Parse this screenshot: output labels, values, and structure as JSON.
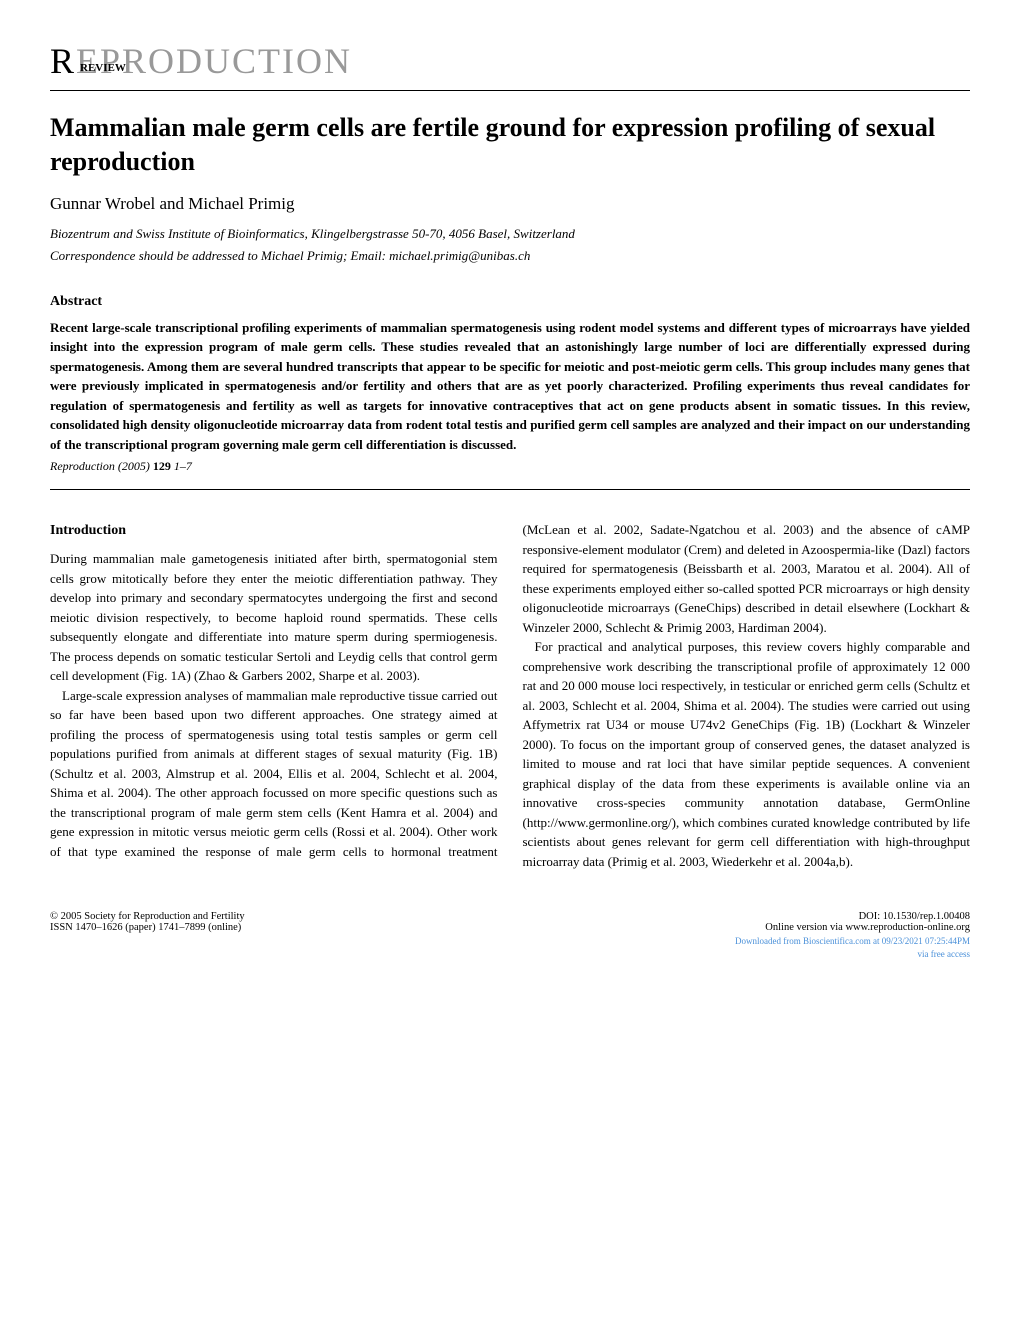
{
  "journal": {
    "name": "REPRODUCTION",
    "review_label": "REVIEW"
  },
  "article": {
    "title": "Mammalian male germ cells are fertile ground for expression profiling of sexual reproduction",
    "authors": "Gunnar Wrobel and Michael Primig",
    "affiliation": "Biozentrum and Swiss Institute of Bioinformatics, Klingelbergstrasse 50-70, 4056 Basel, Switzerland",
    "correspondence": "Correspondence should be addressed to Michael Primig; Email: michael.primig@unibas.ch"
  },
  "abstract": {
    "heading": "Abstract",
    "text": "Recent large-scale transcriptional profiling experiments of mammalian spermatogenesis using rodent model systems and different types of microarrays have yielded insight into the expression program of male germ cells. These studies revealed that an astonishingly large number of loci are differentially expressed during spermatogenesis. Among them are several hundred transcripts that appear to be specific for meiotic and post-meiotic germ cells. This group includes many genes that were previously implicated in spermatogenesis and/or fertility and others that are as yet poorly characterized. Profiling experiments thus reveal candidates for regulation of spermatogenesis and fertility as well as targets for innovative contraceptives that act on gene products absent in somatic tissues. In this review, consolidated high density oligonucleotide microarray data from rodent total testis and purified germ cell samples are analyzed and their impact on our understanding of the transcriptional program governing male germ cell differentiation is discussed.",
    "citation_journal": "Reproduction",
    "citation_year": "(2005)",
    "citation_volume": "129",
    "citation_pages": "1–7"
  },
  "introduction": {
    "heading": "Introduction",
    "para1": "During mammalian male gametogenesis initiated after birth, spermatogonial stem cells grow mitotically before they enter the meiotic differentiation pathway. They develop into primary and secondary spermatocytes undergoing the first and second meiotic division respectively, to become haploid round spermatids. These cells subsequently elongate and differentiate into mature sperm during spermiogenesis. The process depends on somatic testicular Sertoli and Leydig cells that control germ cell development (Fig. 1A) (Zhao & Garbers 2002, Sharpe et al. 2003).",
    "para2": "Large-scale expression analyses of mammalian male reproductive tissue carried out so far have been based upon two different approaches. One strategy aimed at profiling the process of spermatogenesis using total testis samples or germ cell populations purified from animals at different stages of sexual maturity (Fig. 1B) (Schultz et al. 2003, Almstrup et al. 2004, Ellis et al. 2004, Schlecht et al. 2004, Shima et al. 2004). The other approach focussed on more specific questions such as the transcriptional program of male germ stem cells (Kent Hamra et al. 2004) and gene expression in mitotic versus meiotic germ cells (Rossi et al. 2004). Other work of that type examined the response of male germ cells to hormonal treatment (McLean et al. 2002, Sadate-Ngatchou et al. 2003) and the absence of cAMP responsive-element modulator (Crem) and deleted in Azoospermia-like (Dazl) factors required for spermatogenesis (Beissbarth et al. 2003, Maratou et al. 2004). All of these experiments employed either so-called spotted PCR microarrays or high density oligonucleotide microarrays (GeneChips) described in detail elsewhere (Lockhart & Winzeler 2000, Schlecht & Primig 2003, Hardiman 2004).",
    "para3": "For practical and analytical purposes, this review covers highly comparable and comprehensive work describing the transcriptional profile of approximately 12 000 rat and 20 000 mouse loci respectively, in testicular or enriched germ cells (Schultz et al. 2003, Schlecht et al. 2004, Shima et al. 2004). The studies were carried out using Affymetrix rat U34 or mouse U74v2 GeneChips (Fig. 1B) (Lockhart & Winzeler 2000). To focus on the important group of conserved genes, the dataset analyzed is limited to mouse and rat loci that have similar peptide sequences. A convenient graphical display of the data from these experiments is available online via an innovative cross-species community annotation database, GermOnline (http://www.germonline.org/), which combines curated knowledge contributed by life scientists about genes relevant for germ cell differentiation with high-throughput microarray data (Primig et al. 2003, Wiederkehr et al. 2004a,b)."
  },
  "footer": {
    "copyright": "© 2005 Society for Reproduction and Fertility",
    "issn": "ISSN 1470–1626 (paper) 1741–7899 (online)",
    "doi": "DOI: 10.1530/rep.1.00408",
    "online": "Online version via www.reproduction-online.org",
    "watermark1": "Downloaded from Bioscientifica.com at 09/23/2021 07:25:44PM",
    "watermark2": "via free access"
  }
}
